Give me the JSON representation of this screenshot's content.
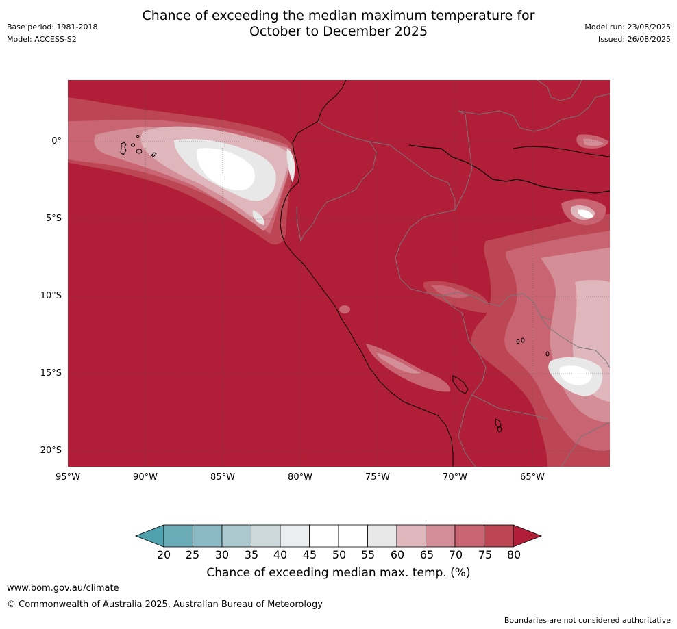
{
  "title_line1": "Chance of exceeding the median maximum temperature for",
  "title_line2": "October to December 2025",
  "meta_left": {
    "base_period": "Base period: 1981-2018",
    "model": "Model: ACCESS-S2"
  },
  "meta_right": {
    "model_run": "Model run: 23/08/2025",
    "issued": "Issued: 26/08/2025"
  },
  "map": {
    "lat_labels": [
      "0°",
      "5°S",
      "10°S",
      "15°S",
      "20°S"
    ],
    "lon_labels": [
      "95°W",
      "90°W",
      "85°W",
      "80°W",
      "75°W",
      "70°W",
      "65°W"
    ],
    "background_class_color": "#b01e38"
  },
  "colorbar": {
    "ticks": [
      "20",
      "25",
      "30",
      "35",
      "40",
      "45",
      "50",
      "55",
      "60",
      "65",
      "70",
      "75",
      "80"
    ],
    "colors": [
      "#4fa1ae",
      "#6aacb8",
      "#8cbac4",
      "#abc8ce",
      "#ccd8da",
      "#eaeeef",
      "#ffffff",
      "#ffffff",
      "#e9e8e9",
      "#dfb6bb",
      "#d48e97",
      "#c96573",
      "#bd4654",
      "#b01e38"
    ],
    "label": "Chance of exceeding median max. temp. (%)"
  },
  "footer": {
    "url": "www.bom.gov.au/climate",
    "copyright": "© Commonwealth of Australia 2025, Australian Bureau of Meteorology",
    "note": "Boundaries are not considered authoritative"
  }
}
